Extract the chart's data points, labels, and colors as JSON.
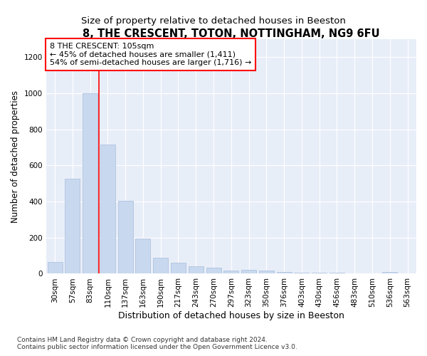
{
  "title": "8, THE CRESCENT, TOTON, NOTTINGHAM, NG9 6FU",
  "subtitle": "Size of property relative to detached houses in Beeston",
  "xlabel": "Distribution of detached houses by size in Beeston",
  "ylabel": "Number of detached properties",
  "categories": [
    "30sqm",
    "57sqm",
    "83sqm",
    "110sqm",
    "137sqm",
    "163sqm",
    "190sqm",
    "217sqm",
    "243sqm",
    "270sqm",
    "297sqm",
    "323sqm",
    "350sqm",
    "376sqm",
    "403sqm",
    "430sqm",
    "456sqm",
    "483sqm",
    "510sqm",
    "536sqm",
    "563sqm"
  ],
  "values": [
    65,
    525,
    1000,
    715,
    405,
    197,
    90,
    60,
    40,
    32,
    17,
    20,
    17,
    10,
    5,
    5,
    5,
    3,
    0,
    10,
    0
  ],
  "bar_color": "#c8d8ee",
  "bar_edge_color": "#a8bedd",
  "bar_width": 0.85,
  "annotation_text": "8 THE CRESCENT: 105sqm\n← 45% of detached houses are smaller (1,411)\n54% of semi-detached houses are larger (1,716) →",
  "annotation_box_color": "white",
  "annotation_box_edge": "red",
  "redline_x": 2.5,
  "ylim": [
    0,
    1300
  ],
  "yticks": [
    0,
    200,
    400,
    600,
    800,
    1000,
    1200
  ],
  "title_fontsize": 10.5,
  "subtitle_fontsize": 9.5,
  "xlabel_fontsize": 9,
  "ylabel_fontsize": 8.5,
  "tick_fontsize": 7.5,
  "annot_fontsize": 8,
  "footer_line1": "Contains HM Land Registry data © Crown copyright and database right 2024.",
  "footer_line2": "Contains public sector information licensed under the Open Government Licence v3.0.",
  "bg_color": "#ffffff",
  "plot_bg_color": "#e8eef8",
  "grid_color": "#ffffff"
}
